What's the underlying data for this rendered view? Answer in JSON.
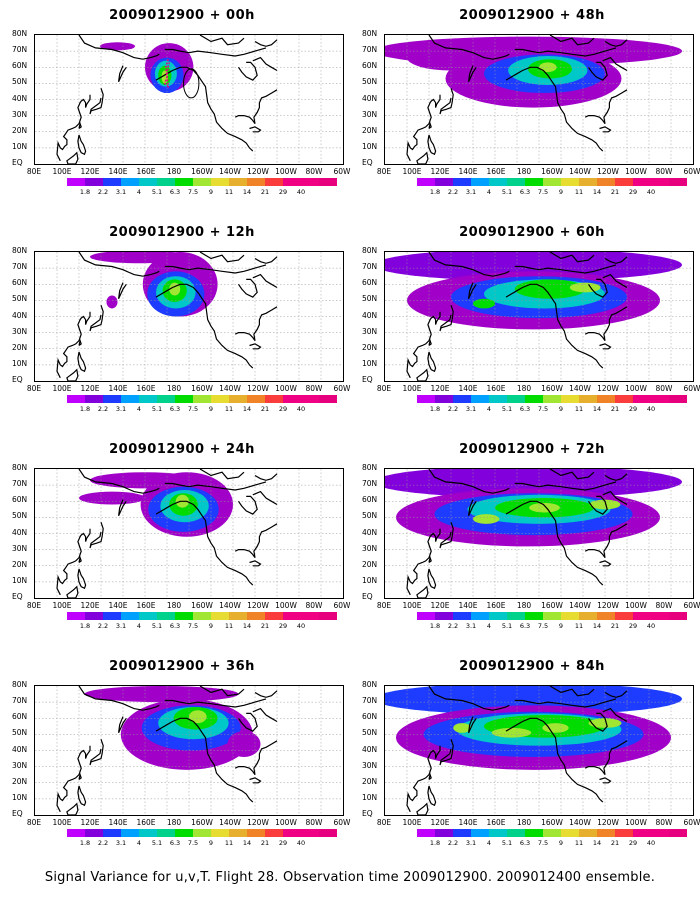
{
  "footer": "Signal Variance for u,v,T. Flight 28. Observation time 2009012900. 2009012400 ensemble.",
  "lat_labels": [
    "80N",
    "70N",
    "60N",
    "50N",
    "40N",
    "30N",
    "20N",
    "10N",
    "EQ"
  ],
  "lon_labels": [
    "80E",
    "100E",
    "120E",
    "140E",
    "160E",
    "180",
    "160W",
    "140W",
    "120W",
    "100W",
    "80W",
    "60W"
  ],
  "colorbar": {
    "labels": [
      "1.8",
      "2.2",
      "3.1",
      "4",
      "5.1",
      "6.3",
      "7.5",
      "9",
      "11",
      "14",
      "21",
      "29",
      "40"
    ],
    "colors": [
      "#a000c8",
      "#8200dc",
      "#1e3cff",
      "#00a0ff",
      "#00c8c8",
      "#00d28c",
      "#00dc00",
      "#a0e632",
      "#e6dc32",
      "#e6af2d",
      "#f08228",
      "#fa3c3c",
      "#f00082"
    ]
  },
  "panels": [
    {
      "title": "2009012900 + 00h",
      "stage": 0
    },
    {
      "title": "2009012900 + 48h",
      "stage": 4
    },
    {
      "title": "2009012900 + 12h",
      "stage": 1
    },
    {
      "title": "2009012900 + 60h",
      "stage": 5
    },
    {
      "title": "2009012900 + 24h",
      "stage": 2
    },
    {
      "title": "2009012900 + 72h",
      "stage": 6
    },
    {
      "title": "2009012900 + 36h",
      "stage": 3
    },
    {
      "title": "2009012900 + 84h",
      "stage": 7
    }
  ]
}
